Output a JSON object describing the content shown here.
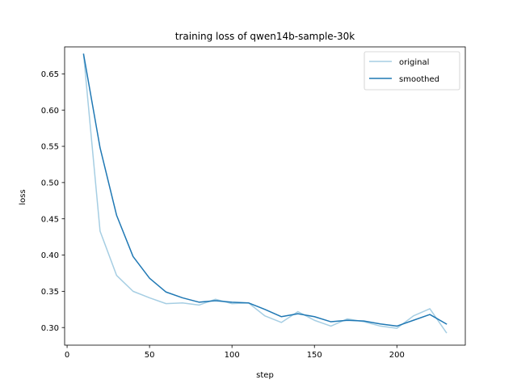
{
  "chart_data": {
    "type": "line",
    "title": "training loss of qwen14b-sample-30k",
    "xlabel": "step",
    "ylabel": "loss",
    "xlim": [
      -1.5,
      241.5
    ],
    "ylim": [
      0.2757,
      0.6872
    ],
    "xticks": [
      0,
      50,
      100,
      150,
      200
    ],
    "yticks": [
      0.3,
      0.35,
      0.4,
      0.45,
      0.5,
      0.55,
      0.6,
      0.65
    ],
    "grid": false,
    "legend_position": "top-right",
    "x": [
      10,
      20,
      30,
      40,
      50,
      60,
      70,
      80,
      90,
      100,
      110,
      120,
      130,
      140,
      150,
      160,
      170,
      180,
      190,
      200,
      210,
      220,
      230
    ],
    "series": [
      {
        "name": "original",
        "color": "#a6cee3",
        "values": [
          0.677,
          0.433,
          0.372,
          0.35,
          0.341,
          0.333,
          0.334,
          0.331,
          0.339,
          0.333,
          0.334,
          0.316,
          0.307,
          0.322,
          0.31,
          0.302,
          0.312,
          0.308,
          0.302,
          0.299,
          0.316,
          0.326,
          0.293
        ]
      },
      {
        "name": "smoothed",
        "color": "#1f78b4",
        "values": [
          0.677,
          0.548,
          0.455,
          0.398,
          0.368,
          0.349,
          0.341,
          0.335,
          0.337,
          0.335,
          0.334,
          0.325,
          0.315,
          0.319,
          0.315,
          0.308,
          0.31,
          0.309,
          0.305,
          0.302,
          0.31,
          0.318,
          0.305
        ]
      }
    ]
  }
}
